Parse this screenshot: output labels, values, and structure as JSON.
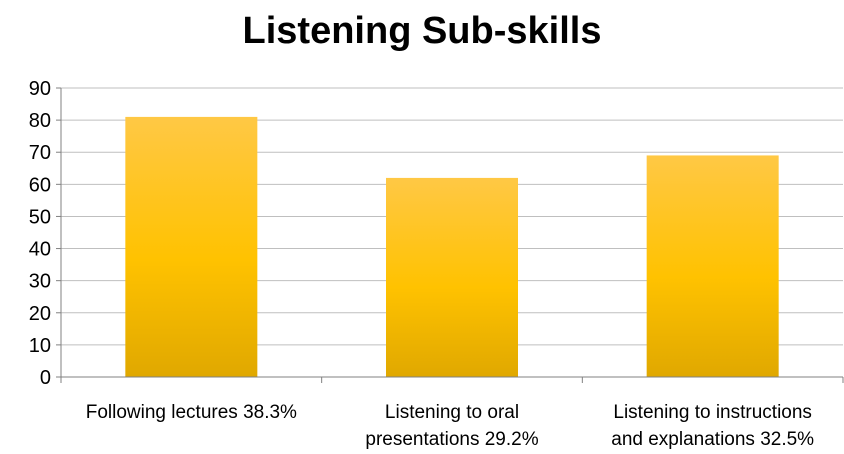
{
  "chart_data": {
    "type": "bar",
    "title": "Listening Sub-skills",
    "categories": [
      [
        "Following lectures 38.3%"
      ],
      [
        "Listening to oral",
        "presentations 29.2%"
      ],
      [
        "Listening to instructions",
        "and explanations 32.5%"
      ]
    ],
    "values": [
      81,
      62,
      69
    ],
    "ylim": [
      0,
      90
    ],
    "yticks": [
      0,
      10,
      20,
      30,
      40,
      50,
      60,
      70,
      80,
      90
    ],
    "grid": true,
    "legend": "none",
    "colors": {
      "bar_top": "#FFC845",
      "bar_mid": "#FFC200",
      "bar_bottom": "#E0A800",
      "grid": "#BFBFBF",
      "axis": "#808080"
    }
  }
}
